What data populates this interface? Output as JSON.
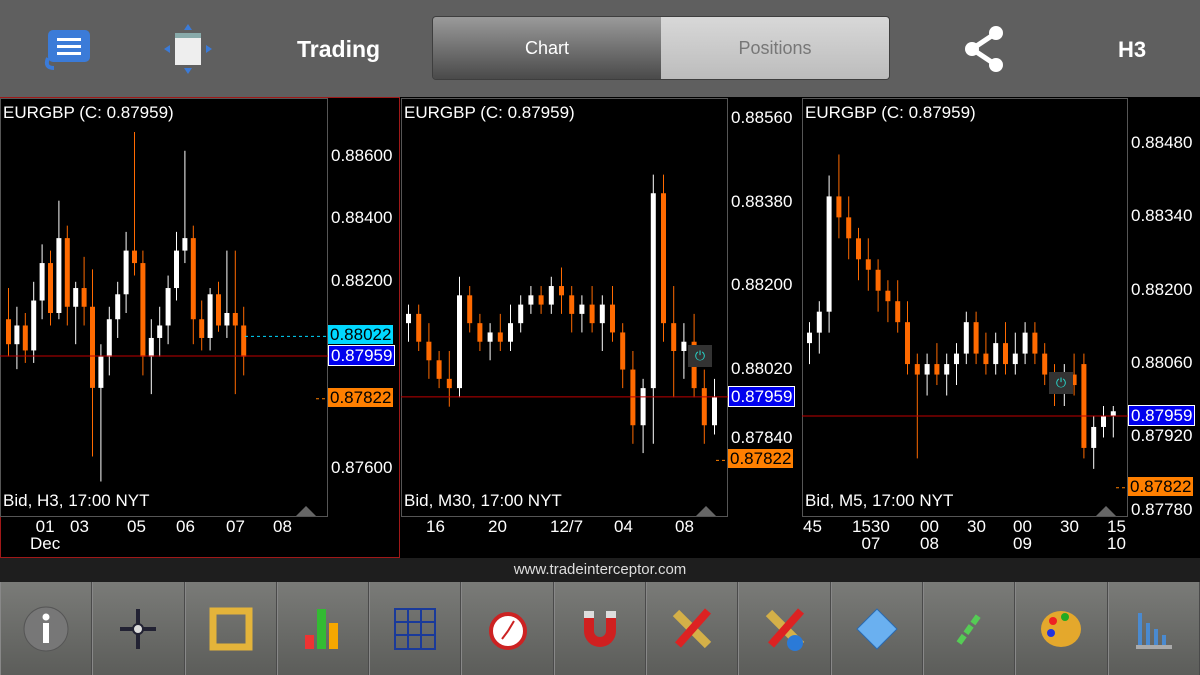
{
  "header": {
    "title": "Trading",
    "tabs": [
      {
        "label": "Chart",
        "active": true
      },
      {
        "label": "Positions",
        "active": false
      }
    ],
    "timeframe": "H3",
    "icons": [
      "menu-icon",
      "window-resize-icon",
      "share-icon"
    ]
  },
  "colors": {
    "bear": "#ff6a00",
    "bull": "#ffffff",
    "bid_line": "#c00000",
    "current_tag": "#0000ff",
    "ask_tag": "#ff7f00",
    "cyan_tag": "#00d8ff"
  },
  "charts": [
    {
      "symbol_label": "EURGBP (C: 0.87959)",
      "footer_label": "Bid, H3, 17:00 NYT",
      "y_ticks": [
        "0.88600",
        "0.88400",
        "0.88200",
        "0.87600"
      ],
      "y_tick_values": [
        0.886,
        0.884,
        0.882,
        0.876
      ],
      "x_labels": [
        {
          "t": "01",
          "s": "Dec"
        },
        {
          "t": "03",
          "s": ""
        },
        {
          "t": "05",
          "s": ""
        },
        {
          "t": "06",
          "s": ""
        },
        {
          "t": "07",
          "s": ""
        },
        {
          "t": "08",
          "s": ""
        }
      ],
      "price_tags": [
        {
          "text": "0.88022",
          "value": 0.88022,
          "kind": "cyan"
        },
        {
          "text": "0.87959",
          "value": 0.87959,
          "kind": "current"
        },
        {
          "text": "0.87822",
          "value": 0.87822,
          "kind": "ask"
        }
      ],
      "candles": [
        [
          0.8808,
          0.8818,
          0.8796,
          0.88
        ],
        [
          0.88,
          0.8812,
          0.8792,
          0.8806
        ],
        [
          0.8806,
          0.881,
          0.8794,
          0.8798
        ],
        [
          0.8798,
          0.882,
          0.8794,
          0.8814
        ],
        [
          0.8814,
          0.8832,
          0.8808,
          0.8826
        ],
        [
          0.8826,
          0.883,
          0.8806,
          0.881
        ],
        [
          0.881,
          0.8846,
          0.8808,
          0.8834
        ],
        [
          0.8834,
          0.8838,
          0.8806,
          0.8812
        ],
        [
          0.8812,
          0.882,
          0.88,
          0.8818
        ],
        [
          0.8818,
          0.8828,
          0.8806,
          0.8812
        ],
        [
          0.8812,
          0.8824,
          0.8764,
          0.8786
        ],
        [
          0.8786,
          0.88,
          0.8756,
          0.8796
        ],
        [
          0.8796,
          0.8812,
          0.879,
          0.8808
        ],
        [
          0.8808,
          0.882,
          0.8802,
          0.8816
        ],
        [
          0.8816,
          0.8836,
          0.881,
          0.883
        ],
        [
          0.883,
          0.8868,
          0.8822,
          0.8826
        ],
        [
          0.8826,
          0.883,
          0.879,
          0.8796
        ],
        [
          0.8796,
          0.8808,
          0.8784,
          0.8802
        ],
        [
          0.8802,
          0.8812,
          0.8796,
          0.8806
        ],
        [
          0.8806,
          0.8822,
          0.88,
          0.8818
        ],
        [
          0.8818,
          0.8836,
          0.8814,
          0.883
        ],
        [
          0.883,
          0.8862,
          0.8826,
          0.8834
        ],
        [
          0.8834,
          0.8838,
          0.88,
          0.8808
        ],
        [
          0.8808,
          0.8814,
          0.8798,
          0.8802
        ],
        [
          0.8802,
          0.8818,
          0.8798,
          0.8816
        ],
        [
          0.8816,
          0.882,
          0.8804,
          0.8806
        ],
        [
          0.8806,
          0.883,
          0.8802,
          0.881
        ],
        [
          0.881,
          0.883,
          0.8784,
          0.8806
        ],
        [
          0.8806,
          0.8812,
          0.879,
          0.8796
        ]
      ]
    },
    {
      "symbol_label": "EURGBP (C: 0.87959)",
      "footer_label": "Bid, M30, 17:00 NYT",
      "y_ticks": [
        "0.88560",
        "0.88380",
        "0.88200",
        "0.88020",
        "0.87840"
      ],
      "y_tick_values": [
        0.8856,
        0.8838,
        0.882,
        0.8802,
        0.8784
      ],
      "x_labels": [
        {
          "t": "16",
          "s": ""
        },
        {
          "t": "20",
          "s": ""
        },
        {
          "t": "",
          "s": "12/7"
        },
        {
          "t": "04",
          "s": ""
        },
        {
          "t": "08",
          "s": ""
        }
      ],
      "price_tags": [
        {
          "text": "0.87959",
          "value": 0.87959,
          "kind": "current"
        },
        {
          "text": "0.87822",
          "value": 0.87822,
          "kind": "ask"
        }
      ],
      "candles": [
        [
          0.8812,
          0.8816,
          0.8808,
          0.8814
        ],
        [
          0.8814,
          0.8816,
          0.8806,
          0.8808
        ],
        [
          0.8808,
          0.8812,
          0.88,
          0.8804
        ],
        [
          0.8804,
          0.8806,
          0.8798,
          0.88
        ],
        [
          0.88,
          0.8806,
          0.8794,
          0.8798
        ],
        [
          0.8798,
          0.8822,
          0.8796,
          0.8818
        ],
        [
          0.8818,
          0.882,
          0.881,
          0.8812
        ],
        [
          0.8812,
          0.8814,
          0.8806,
          0.8808
        ],
        [
          0.8808,
          0.8812,
          0.8804,
          0.881
        ],
        [
          0.881,
          0.8814,
          0.8806,
          0.8808
        ],
        [
          0.8808,
          0.8816,
          0.8806,
          0.8812
        ],
        [
          0.8812,
          0.8818,
          0.881,
          0.8816
        ],
        [
          0.8816,
          0.882,
          0.8814,
          0.8818
        ],
        [
          0.8818,
          0.882,
          0.8814,
          0.8816
        ],
        [
          0.8816,
          0.8822,
          0.8814,
          0.882
        ],
        [
          0.882,
          0.8824,
          0.8814,
          0.8818
        ],
        [
          0.8818,
          0.882,
          0.881,
          0.8814
        ],
        [
          0.8814,
          0.8818,
          0.881,
          0.8816
        ],
        [
          0.8816,
          0.882,
          0.881,
          0.8812
        ],
        [
          0.8812,
          0.8818,
          0.8806,
          0.8816
        ],
        [
          0.8816,
          0.882,
          0.8808,
          0.881
        ],
        [
          0.881,
          0.8812,
          0.8798,
          0.8802
        ],
        [
          0.8802,
          0.8806,
          0.8786,
          0.879
        ],
        [
          0.879,
          0.88,
          0.8784,
          0.8798
        ],
        [
          0.8798,
          0.8844,
          0.8786,
          0.884
        ],
        [
          0.884,
          0.8844,
          0.8808,
          0.8812
        ],
        [
          0.8812,
          0.882,
          0.8796,
          0.8806
        ],
        [
          0.8806,
          0.8812,
          0.88,
          0.8808
        ],
        [
          0.8808,
          0.8814,
          0.8796,
          0.8798
        ],
        [
          0.8798,
          0.8802,
          0.8786,
          0.879
        ],
        [
          0.879,
          0.88,
          0.8788,
          0.8796
        ]
      ]
    },
    {
      "symbol_label": "EURGBP (C: 0.87959)",
      "footer_label": "Bid, M5, 17:00 NYT",
      "y_ticks": [
        "0.88480",
        "0.88340",
        "0.88200",
        "0.88060",
        "0.87920",
        "0.87780"
      ],
      "y_tick_values": [
        0.8848,
        0.8834,
        0.882,
        0.8806,
        0.8792,
        0.8778
      ],
      "x_labels": [
        {
          "t": "45",
          "s": ""
        },
        {
          "t": "1530",
          "s": "07"
        },
        {
          "t": "00",
          "s": "08"
        },
        {
          "t": "30",
          "s": ""
        },
        {
          "t": "00",
          "s": "09"
        },
        {
          "t": "30",
          "s": ""
        },
        {
          "t": "15",
          "s": "10"
        }
      ],
      "price_tags": [
        {
          "text": "0.87959",
          "value": 0.87959,
          "kind": "current"
        },
        {
          "text": "0.87822",
          "value": 0.87822,
          "kind": "ask"
        }
      ],
      "candles": [
        [
          0.881,
          0.8814,
          0.8806,
          0.8812
        ],
        [
          0.8812,
          0.8818,
          0.8808,
          0.8816
        ],
        [
          0.8816,
          0.8842,
          0.8812,
          0.8838
        ],
        [
          0.8838,
          0.8846,
          0.883,
          0.8834
        ],
        [
          0.8834,
          0.8838,
          0.8826,
          0.883
        ],
        [
          0.883,
          0.8832,
          0.8822,
          0.8826
        ],
        [
          0.8826,
          0.883,
          0.882,
          0.8824
        ],
        [
          0.8824,
          0.8826,
          0.8816,
          0.882
        ],
        [
          0.882,
          0.8822,
          0.8814,
          0.8818
        ],
        [
          0.8818,
          0.8822,
          0.8812,
          0.8814
        ],
        [
          0.8814,
          0.8818,
          0.8804,
          0.8806
        ],
        [
          0.8806,
          0.8808,
          0.8788,
          0.8804
        ],
        [
          0.8804,
          0.8808,
          0.88,
          0.8806
        ],
        [
          0.8806,
          0.881,
          0.8802,
          0.8804
        ],
        [
          0.8804,
          0.8808,
          0.88,
          0.8806
        ],
        [
          0.8806,
          0.881,
          0.8802,
          0.8808
        ],
        [
          0.8808,
          0.8816,
          0.8806,
          0.8814
        ],
        [
          0.8814,
          0.8816,
          0.8806,
          0.8808
        ],
        [
          0.8808,
          0.8812,
          0.8804,
          0.8806
        ],
        [
          0.8806,
          0.8812,
          0.8804,
          0.881
        ],
        [
          0.881,
          0.8814,
          0.8804,
          0.8806
        ],
        [
          0.8806,
          0.8812,
          0.8804,
          0.8808
        ],
        [
          0.8808,
          0.8814,
          0.8806,
          0.8812
        ],
        [
          0.8812,
          0.8814,
          0.8806,
          0.8808
        ],
        [
          0.8808,
          0.881,
          0.8802,
          0.8804
        ],
        [
          0.8804,
          0.8806,
          0.8798,
          0.8802
        ],
        [
          0.8802,
          0.8806,
          0.8798,
          0.8804
        ],
        [
          0.8804,
          0.8808,
          0.88,
          0.8802
        ],
        [
          0.8806,
          0.8808,
          0.8788,
          0.879
        ],
        [
          0.879,
          0.8796,
          0.8786,
          0.8794
        ],
        [
          0.8794,
          0.8798,
          0.8792,
          0.8796
        ],
        [
          0.8796,
          0.8798,
          0.8792,
          0.8797
        ]
      ]
    }
  ],
  "footer": {
    "url": "www.tradeinterceptor.com"
  },
  "toolbar": {
    "items": [
      "info-icon",
      "crosshair-icon",
      "ruler-frame-icon",
      "bar-chart-icon",
      "grid-icon",
      "alarm-clock-icon",
      "magnet-icon",
      "drawing-tools-icon",
      "drawing-info-icon",
      "folder-icon",
      "link-icon",
      "palette-icon",
      "indicators-icon"
    ]
  }
}
